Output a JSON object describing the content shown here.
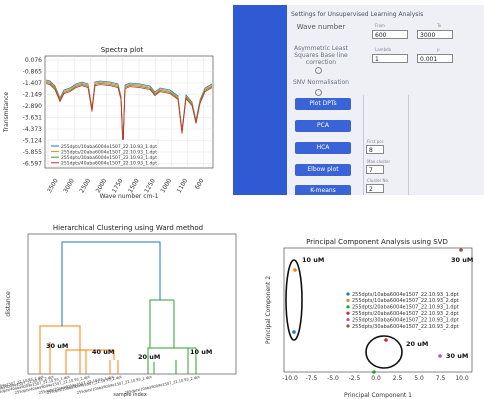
{
  "spectra": {
    "title": "Spectra plot",
    "ylabel": "Transmitance",
    "xlabel": "Wave number cm-1",
    "yticks": [
      "0.076",
      "-0.865",
      "-1.407",
      "-2.149",
      "-2.890",
      "-3.631",
      "-4.373",
      "-5.124",
      "-5.855",
      "-6.597"
    ],
    "xticks": [
      "3500",
      "3000",
      "2500",
      "2000",
      "1750",
      "1500",
      "1250",
      "1000",
      "1100",
      "600"
    ],
    "legend": [
      "255dpts/10aba6004e1507_22.10.93_1.dpt",
      "255dpts/20aba6004e1507_22.10.93_1.dpt",
      "255dpts/30aba6004e1507_22.10.93_1.dpt",
      "255dpts/40aba6004e1507_22.10.93_1.dpt"
    ],
    "colors": [
      "#1f77b4",
      "#ff7f0e",
      "#2ca02c",
      "#d62728"
    ]
  },
  "settings": {
    "title": "Settings for Unsupervised Learning Analysis",
    "wave_number_label": "Wave number",
    "from_label": "From",
    "to_label": "To",
    "from_value": "600",
    "to_value": "3000",
    "als_label": "Asymmetric Least Squares Base line correction",
    "lambda_label": "Lambda",
    "p_label": "p",
    "lambda_value": "1",
    "p_value": "0.001",
    "snv_label": "SNV Normalisation",
    "buttons": [
      "Plot DPTs",
      "PCA",
      "HCA",
      "Elbow plot",
      "K-means"
    ],
    "first_pcs_label": "First pcs",
    "first_pcs_value": "8",
    "max_cluster_label": "Max cluster",
    "max_cluster_value": "7",
    "cluster_no_label": "Cluster No.",
    "cluster_no_value": "2"
  },
  "hca": {
    "title": "Hierarchical Clustering using Ward method",
    "ylabel": "distance",
    "xlabel": "sample index",
    "annotations": [
      "30 uM",
      "40 uM",
      "20 uM",
      "10 uM"
    ],
    "leaf_labels": [
      "255dpts/30aba6004e1507_22.10.93_1.dpt",
      "255dpts/30aba6004e1507_22.10.93_2.dpt",
      "255dpts/40aba6004e1507_22.10.93_1.dpt",
      "255dpts/40aba6004e1507_22.10.93_2.dpt",
      "255dpts/20aba6004e1507_22.10.93_1.dpt",
      "255dpts/20aba6004e1507_22.10.93_2.dpt",
      "255dpts/10aba6004e1507_22.10.93_1.dpt",
      "255dpts/10aba6004e1507_22.10.93_2.dpt"
    ],
    "colors": {
      "orange": "#ff7f0e",
      "green": "#2ca02c",
      "blue": "#1f77b4"
    }
  },
  "pca": {
    "title": "Principal Component Analysis using SVD",
    "xlabel": "Principal Component 1",
    "ylabel": "Principal Component 2",
    "xticks": [
      "-10.0",
      "-7.5",
      "-5.0",
      "-2.5",
      "0.0",
      "2.5",
      "5.0",
      "7.5",
      "10.0"
    ],
    "annotations": [
      "10 uM",
      "30 uM",
      "20 uM",
      "30 uM"
    ],
    "legend": [
      {
        "label": "255dpts/10aba6004e1507_22.10.93_1.dpt",
        "color": "#1f77b4"
      },
      {
        "label": "255dpts/10aba6004e1507_22.10.93_2.dpt",
        "color": "#ff7f0e"
      },
      {
        "label": "255dpts/20aba6004e1507_22.10.93_1.dpt",
        "color": "#2ca02c"
      },
      {
        "label": "255dpts/20aba6004e1507_22.10.93_2.dpt",
        "color": "#d62728"
      },
      {
        "label": "255dpts/30aba6004e1507_22.10.93_1.dpt",
        "color": "#9467bd"
      },
      {
        "label": "255dpts/30aba6004e1507_22.10.93_2.dpt",
        "color": "#8c564b"
      }
    ]
  }
}
